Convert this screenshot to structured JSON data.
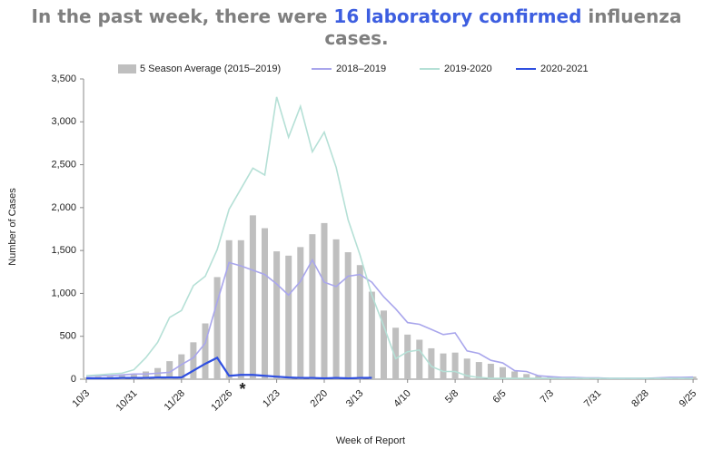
{
  "chart_data": {
    "type": "bar-line",
    "title_parts": [
      "In the past week, there were ",
      "16 laboratory confirmed",
      " influenza cases."
    ],
    "x_label": "Week of Report",
    "y_label": "Number of Cases",
    "annotation": "*",
    "categories": [
      "10/3",
      null,
      null,
      null,
      "10/31",
      null,
      null,
      null,
      "11/28",
      null,
      null,
      null,
      "12/26",
      null,
      null,
      null,
      "1/23",
      null,
      null,
      null,
      "2/20",
      null,
      null,
      "3/13",
      null,
      null,
      null,
      "4/10",
      null,
      null,
      null,
      "5/8",
      null,
      null,
      null,
      "6/5",
      null,
      null,
      null,
      "7/3",
      null,
      null,
      null,
      "7/31",
      null,
      null,
      null,
      "8/28",
      null,
      null,
      null,
      "9/25"
    ],
    "ylim": [
      0,
      3500
    ],
    "yticks": [
      0,
      500,
      {
        "value": 1000,
        "label": "1,000"
      },
      {
        "value": 1500,
        "label": "1,500"
      },
      {
        "value": 2000,
        "label": "2,000"
      },
      {
        "value": 2500,
        "label": "2,500"
      },
      {
        "value": 3000,
        "label": "3,000"
      },
      {
        "value": 3500,
        "label": "3,500"
      }
    ],
    "series": [
      {
        "name": "5 Season Average (2015–2019)",
        "kind": "bar",
        "color": "#bfbfbf",
        "values": [
          20,
          30,
          40,
          50,
          60,
          90,
          130,
          210,
          290,
          430,
          650,
          1190,
          1620,
          1620,
          1910,
          1760,
          1490,
          1440,
          1540,
          1690,
          1820,
          1630,
          1480,
          1330,
          1020,
          800,
          600,
          520,
          460,
          360,
          300,
          310,
          240,
          200,
          180,
          140,
          90,
          60,
          40,
          30,
          25,
          20,
          20,
          15,
          15,
          15,
          15,
          15,
          15,
          20,
          25,
          30
        ]
      },
      {
        "name": "2018–2019",
        "kind": "line",
        "color": "#a9a6ec",
        "values": [
          30,
          40,
          40,
          50,
          60,
          60,
          70,
          80,
          170,
          250,
          420,
          900,
          1360,
          1320,
          1270,
          1220,
          1110,
          980,
          1140,
          1390,
          1130,
          1080,
          1200,
          1220,
          1130,
          960,
          820,
          660,
          640,
          580,
          520,
          540,
          330,
          300,
          220,
          190,
          100,
          90,
          40,
          30,
          20,
          20,
          15,
          15,
          10,
          10,
          10,
          10,
          15,
          20,
          20,
          25
        ]
      },
      {
        "name": "2019-2020",
        "kind": "line",
        "color": "#b5e0d6",
        "values": [
          40,
          50,
          60,
          70,
          110,
          250,
          430,
          720,
          800,
          1090,
          1200,
          1510,
          1980,
          2220,
          2460,
          2380,
          3290,
          2820,
          3180,
          2650,
          2880,
          2470,
          1860,
          1450,
          980,
          620,
          240,
          320,
          340,
          150,
          90,
          90,
          40,
          20,
          10,
          10,
          10,
          10,
          10,
          10,
          10,
          10,
          10,
          10,
          10,
          10,
          10,
          10,
          10,
          10,
          10,
          10
        ]
      },
      {
        "name": "2020-2021",
        "kind": "line",
        "color": "#2f4fe0",
        "values": [
          10,
          10,
          10,
          15,
          15,
          15,
          20,
          20,
          20,
          100,
          180,
          250,
          40,
          50,
          50,
          40,
          30,
          20,
          15,
          15,
          10,
          15,
          10,
          15,
          16,
          null,
          null,
          null,
          null,
          null,
          null,
          null,
          null,
          null,
          null,
          null,
          null,
          null,
          null,
          null,
          null,
          null,
          null,
          null,
          null,
          null,
          null,
          null,
          null,
          null,
          null,
          null
        ]
      }
    ]
  }
}
